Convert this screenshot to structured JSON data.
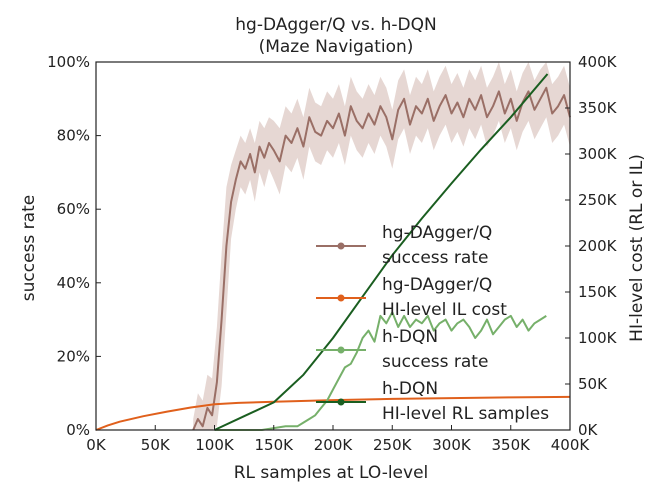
{
  "chart_data": {
    "type": "line",
    "title": "hg-DAgger/Q vs. h-DQN",
    "subtitle": "(Maze Navigation)",
    "xlabel": "RL samples at LO-level",
    "ylabel": "success rate",
    "ylabel_right": "HI-level cost (RL or IL)",
    "xlim": [
      0,
      400000
    ],
    "ylim": [
      0,
      100
    ],
    "ylim_right": [
      0,
      400000
    ],
    "grid": false,
    "legend_position": "center-right",
    "x_ticks": [
      "0K",
      "50K",
      "100K",
      "150K",
      "200K",
      "250K",
      "300K",
      "350K",
      "400K"
    ],
    "y_ticks_left": [
      "0%",
      "20%",
      "40%",
      "60%",
      "80%",
      "100%"
    ],
    "y_ticks_right": [
      "0K",
      "50K",
      "100K",
      "150K",
      "200K",
      "250K",
      "300K",
      "350K",
      "400K"
    ],
    "series": [
      {
        "name": "hg-DAgger/Q success rate",
        "legend_line1": "hg-DAgger/Q",
        "legend_line2": "success rate",
        "axis": "left",
        "color": "#9a6f66",
        "band_color": "#e6d7d3",
        "x": [
          82000,
          86000,
          90000,
          94000,
          98000,
          102000,
          106000,
          110000,
          114000,
          118000,
          122000,
          126000,
          130000,
          134000,
          138000,
          142000,
          146000,
          150000,
          155000,
          160000,
          165000,
          170000,
          175000,
          180000,
          185000,
          190000,
          195000,
          200000,
          205000,
          210000,
          215000,
          220000,
          225000,
          230000,
          235000,
          240000,
          245000,
          250000,
          255000,
          260000,
          265000,
          270000,
          275000,
          280000,
          285000,
          290000,
          295000,
          300000,
          305000,
          310000,
          315000,
          320000,
          325000,
          330000,
          335000,
          340000,
          345000,
          350000,
          355000,
          360000,
          365000,
          370000,
          375000,
          380000,
          385000,
          390000,
          395000,
          400000
        ],
        "values": [
          0,
          3,
          1,
          6,
          4,
          13,
          30,
          50,
          62,
          68,
          73,
          71,
          75,
          70,
          77,
          74,
          78,
          76,
          73,
          80,
          78,
          82,
          77,
          85,
          81,
          80,
          84,
          82,
          86,
          80,
          88,
          84,
          82,
          86,
          83,
          88,
          85,
          79,
          87,
          90,
          83,
          88,
          86,
          90,
          84,
          88,
          91,
          86,
          89,
          85,
          90,
          87,
          91,
          85,
          88,
          92,
          86,
          90,
          84,
          89,
          92,
          87,
          90,
          93,
          86,
          88,
          91,
          85
        ],
        "band_low": [
          0,
          0,
          0,
          0,
          0,
          1,
          12,
          32,
          52,
          60,
          66,
          64,
          68,
          62,
          70,
          66,
          71,
          68,
          64,
          72,
          70,
          74,
          68,
          77,
          73,
          72,
          76,
          74,
          78,
          72,
          80,
          76,
          74,
          78,
          75,
          80,
          77,
          71,
          79,
          82,
          75,
          80,
          78,
          82,
          76,
          80,
          83,
          78,
          81,
          77,
          82,
          79,
          83,
          77,
          80,
          84,
          78,
          82,
          76,
          81,
          84,
          79,
          82,
          85,
          78,
          80,
          83,
          77
        ],
        "band_high": [
          3,
          10,
          8,
          15,
          14,
          28,
          48,
          66,
          72,
          76,
          80,
          78,
          82,
          78,
          84,
          82,
          85,
          84,
          82,
          88,
          86,
          90,
          85,
          93,
          89,
          88,
          92,
          90,
          94,
          88,
          96,
          92,
          90,
          94,
          91,
          96,
          93,
          87,
          95,
          98,
          91,
          96,
          94,
          98,
          92,
          96,
          99,
          94,
          97,
          93,
          98,
          95,
          99,
          93,
          96,
          100,
          94,
          98,
          92,
          97,
          100,
          95,
          98,
          100,
          94,
          96,
          99,
          93
        ]
      },
      {
        "name": "hg-DAgger/Q HI-level IL cost",
        "legend_line1": "hg-DAgger/Q",
        "legend_line2": "HI-level IL cost",
        "axis": "right",
        "color": "#e0601c",
        "x": [
          0,
          10000,
          20000,
          40000,
          60000,
          80000,
          100000,
          120000,
          150000,
          200000,
          250000,
          300000,
          350000,
          400000
        ],
        "values": [
          0,
          5000,
          9000,
          15000,
          20000,
          24500,
          28000,
          29500,
          30800,
          32500,
          33800,
          34700,
          35400,
          36000
        ]
      },
      {
        "name": "h-DQN success rate",
        "legend_line1": "h-DQN",
        "legend_line2": "success rate",
        "axis": "left",
        "color": "#76b06a",
        "x": [
          100000,
          140000,
          160000,
          170000,
          175000,
          180000,
          185000,
          190000,
          195000,
          200000,
          205000,
          210000,
          215000,
          220000,
          225000,
          230000,
          235000,
          240000,
          245000,
          250000,
          255000,
          260000,
          265000,
          270000,
          275000,
          280000,
          285000,
          290000,
          295000,
          300000,
          305000,
          310000,
          315000,
          320000,
          325000,
          330000,
          335000,
          340000,
          345000,
          350000,
          355000,
          360000,
          365000,
          370000,
          375000,
          380000
        ],
        "values": [
          0,
          0,
          1,
          1,
          2,
          3,
          4,
          6,
          8,
          11,
          14,
          17,
          18,
          21,
          25,
          27,
          24,
          31,
          29,
          32,
          28,
          31,
          28,
          30,
          29,
          31,
          27,
          29,
          30,
          27,
          29,
          30,
          28,
          25,
          27,
          30,
          26,
          28,
          30,
          31,
          28,
          30,
          27,
          29,
          30,
          31
        ]
      },
      {
        "name": "h-DQN HI-level RL samples",
        "legend_line1": "h-DQN",
        "legend_line2": "HI-level RL samples",
        "axis": "right",
        "color": "#1a5e20",
        "x": [
          100000,
          125000,
          150000,
          175000,
          200000,
          225000,
          250000,
          275000,
          300000,
          325000,
          350000,
          381000
        ],
        "values": [
          0,
          15000,
          30000,
          60000,
          100000,
          145000,
          190000,
          230000,
          268000,
          305000,
          340000,
          387000
        ]
      }
    ]
  }
}
